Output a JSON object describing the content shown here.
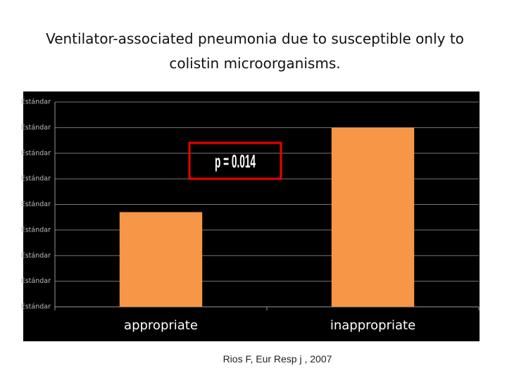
{
  "chart_data": {
    "type": "bar",
    "title": "Ventilator-associated pneumonia due to susceptible only to colistin microorganisms.",
    "categories": [
      "appropriate",
      "inappropriate"
    ],
    "values": [
      3.7,
      7.0
    ],
    "color": "#f79646",
    "ylim": [
      0,
      8
    ],
    "yticks": [
      {
        "value": 0,
        "label": "Estándar"
      },
      {
        "value": 1,
        "label": "Estándar"
      },
      {
        "value": 2,
        "label": "Estándar"
      },
      {
        "value": 3,
        "label": "Estándar"
      },
      {
        "value": 4,
        "label": "Estándar"
      },
      {
        "value": 5,
        "label": "Estándar"
      },
      {
        "value": 6,
        "label": "Estándar"
      },
      {
        "value": 7,
        "label": "Estándar"
      },
      {
        "value": 8,
        "label": "Estándar"
      }
    ],
    "grid": true,
    "annotation": "p = 0.014",
    "source": "Rios F, Eur Resp j , 2007"
  }
}
